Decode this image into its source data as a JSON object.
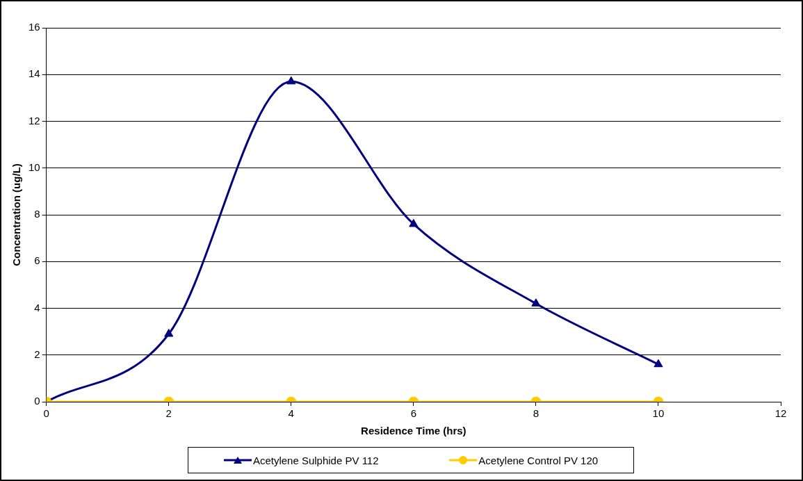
{
  "chart_data": {
    "type": "line",
    "xlabel": "Residence Time (hrs)",
    "ylabel": "Concentration (ug/L)",
    "x": [
      0,
      2,
      4,
      6,
      8,
      10
    ],
    "series": [
      {
        "name": "Acetylene Sulphide PV 112",
        "color": "#000080",
        "marker": "triangle",
        "values": [
          0,
          2.9,
          13.7,
          7.6,
          4.2,
          1.6
        ]
      },
      {
        "name": "Acetylene Control PV 120",
        "color": "#ffcc00",
        "marker": "circle",
        "values": [
          0,
          0,
          0,
          0,
          0,
          0
        ]
      }
    ],
    "xlim": [
      0,
      12
    ],
    "xticks": [
      0,
      2,
      4,
      6,
      8,
      10,
      12
    ],
    "ylim": [
      0,
      16
    ],
    "yticks": [
      0,
      2,
      4,
      6,
      8,
      10,
      12,
      14,
      16
    ],
    "grid": "y",
    "legend": "bottom"
  }
}
